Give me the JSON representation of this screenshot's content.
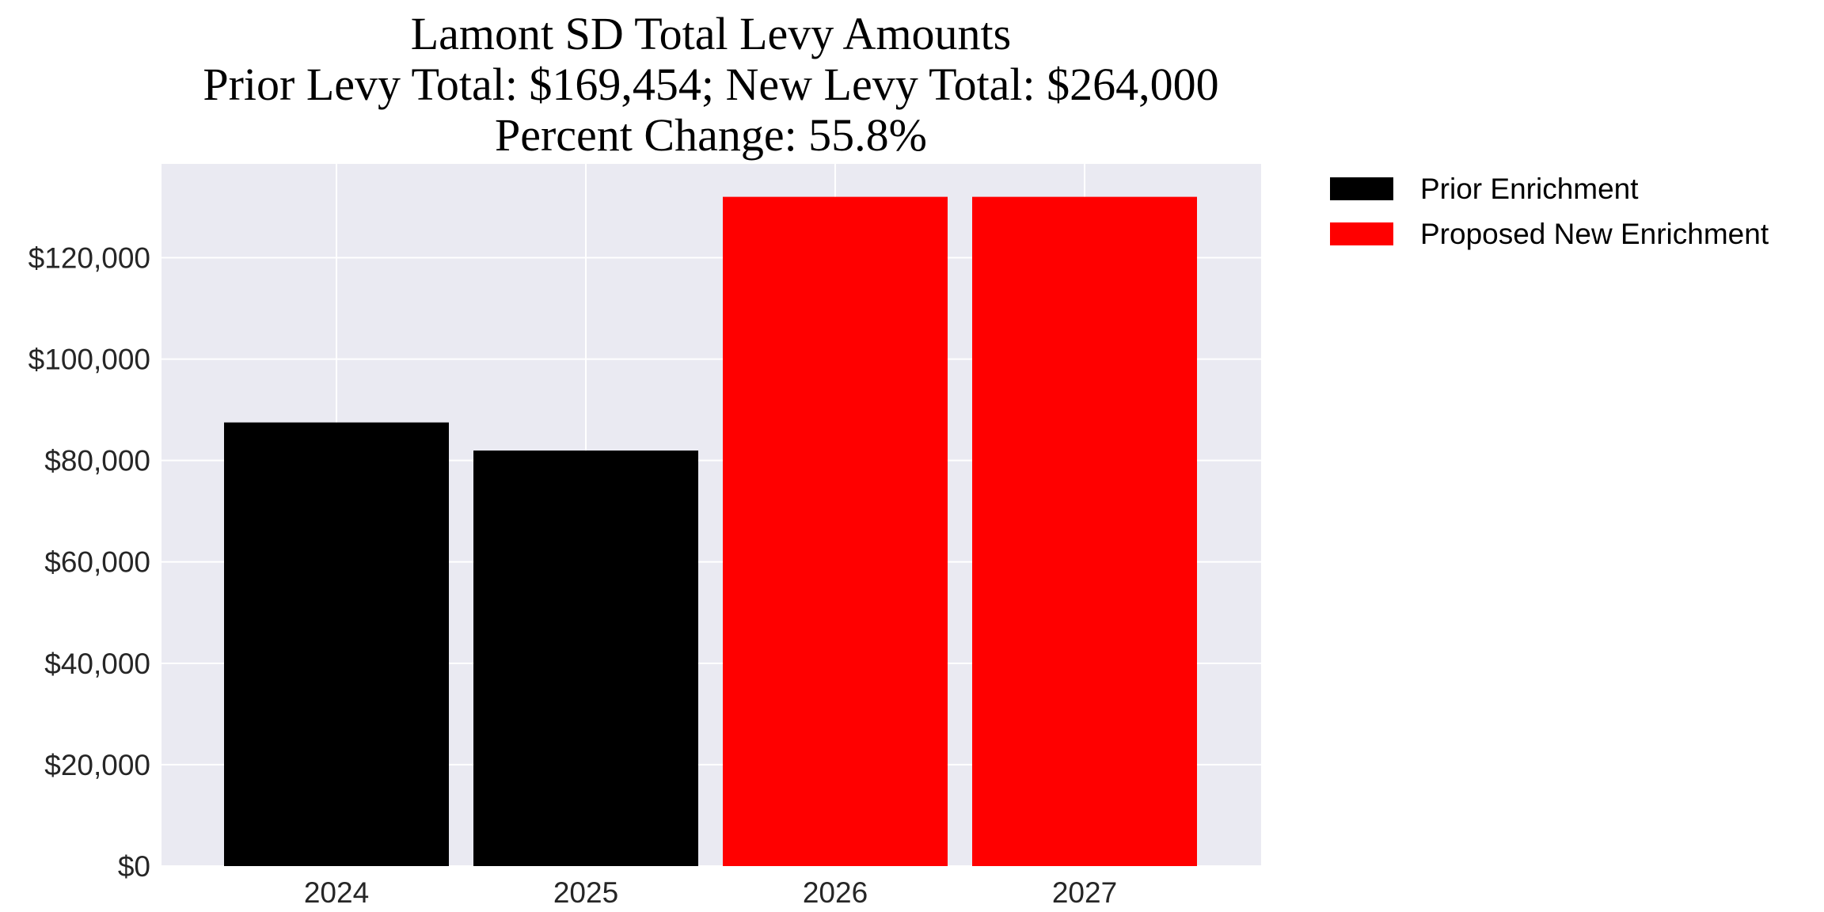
{
  "chart_data": {
    "type": "bar",
    "title_lines": [
      "Lamont SD Total Levy Amounts",
      "Prior Levy Total:  $169,454; New Levy Total: $264,000",
      "Percent Change: 55.8%"
    ],
    "categories": [
      "2024",
      "2025",
      "2026",
      "2027"
    ],
    "series": [
      {
        "name": "Prior Enrichment",
        "color": "#000000",
        "values": [
          87500,
          81954,
          0,
          0
        ]
      },
      {
        "name": "Proposed New Enrichment",
        "color": "#ff0000",
        "values": [
          0,
          0,
          132000,
          132000
        ]
      }
    ],
    "ylim": [
      0,
      138500
    ],
    "yticks": [
      0,
      20000,
      40000,
      60000,
      80000,
      100000,
      120000
    ],
    "ytick_labels": [
      "$0",
      "$20,000",
      "$40,000",
      "$60,000",
      "$80,000",
      "$100,000",
      "$120,000"
    ],
    "grid": true,
    "legend_position": "outside-top-right",
    "plot_background": "#eaeaf2",
    "grid_color": "#ffffff"
  }
}
